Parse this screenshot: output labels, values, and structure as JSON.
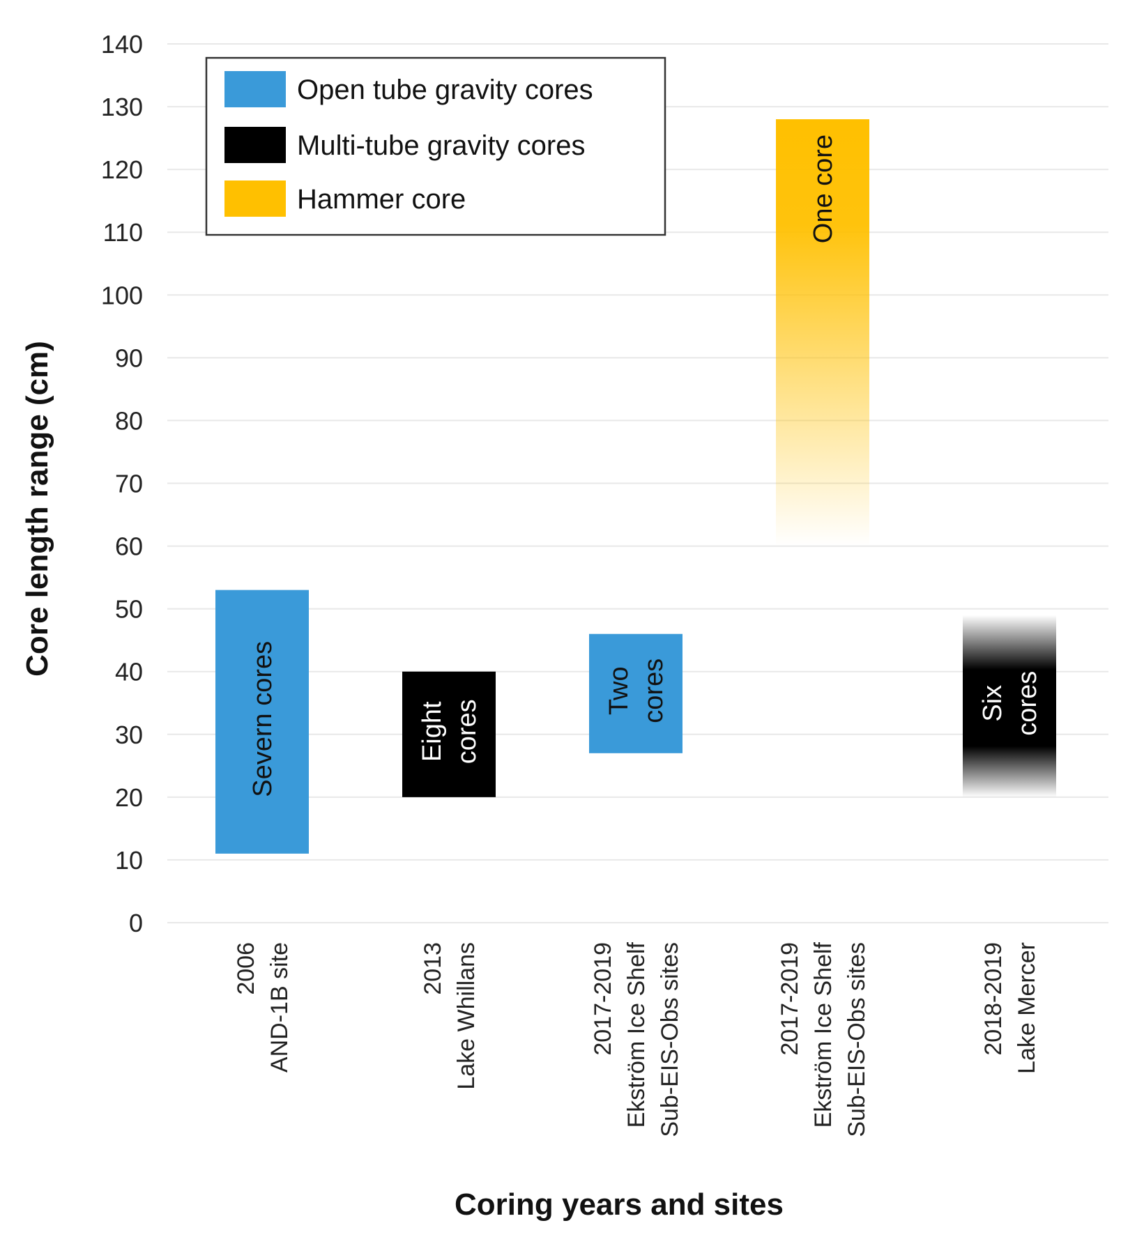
{
  "chart_data": {
    "type": "bar",
    "subtype": "floating-range",
    "title": "",
    "xlabel": "Coring years and sites",
    "ylabel": "Core length range (cm)",
    "ylim": [
      0,
      140
    ],
    "yticks": [
      0,
      10,
      20,
      30,
      40,
      50,
      60,
      70,
      80,
      90,
      100,
      110,
      120,
      130,
      140
    ],
    "grid": true,
    "legend_position": "top-left",
    "legend": [
      {
        "name": "Open tube gravity cores",
        "color": "#3a9ad9"
      },
      {
        "name": "Multi-tube gravity cores",
        "color": "#000000"
      },
      {
        "name": "Hammer core",
        "color": "#ffc000"
      }
    ],
    "categories": [
      {
        "lines": [
          "2006",
          "AND-1B site"
        ]
      },
      {
        "lines": [
          "2013",
          "Lake Whillans"
        ]
      },
      {
        "lines": [
          "2017-2019",
          "Ekström Ice Shelf",
          "Sub-EIS-Obs sites"
        ]
      },
      {
        "lines": [
          "2017-2019",
          "Ekström Ice Shelf",
          "Sub-EIS-Obs sites"
        ]
      },
      {
        "lines": [
          "2018-2019",
          "Lake Mercer"
        ]
      }
    ],
    "bars": [
      {
        "category": 0,
        "series": "Open tube gravity cores",
        "low": 11,
        "high": 53,
        "color": "#3a9ad9",
        "fade": "none",
        "label": [
          "Severn cores"
        ],
        "label_color": "#111111"
      },
      {
        "category": 1,
        "series": "Multi-tube gravity cores",
        "low": 20,
        "high": 40,
        "color": "#000000",
        "fade": "none",
        "label": [
          "Eight",
          "cores"
        ],
        "label_color": "#ffffff"
      },
      {
        "category": 2,
        "series": "Open tube gravity cores",
        "low": 27,
        "high": 46,
        "color": "#3a9ad9",
        "fade": "none",
        "label": [
          "Two",
          "cores"
        ],
        "label_color": "#111111"
      },
      {
        "category": 3,
        "series": "Hammer core",
        "low": 60,
        "high": 128,
        "color": "#ffc000",
        "fade": "bottom",
        "label": [
          "One core"
        ],
        "label_color": "#111111"
      },
      {
        "category": 4,
        "series": "Multi-tube gravity cores",
        "low": 20,
        "high": 49,
        "color": "#000000",
        "fade": "both",
        "label": [
          "Six",
          "cores"
        ],
        "label_color": "#ffffff"
      }
    ]
  }
}
